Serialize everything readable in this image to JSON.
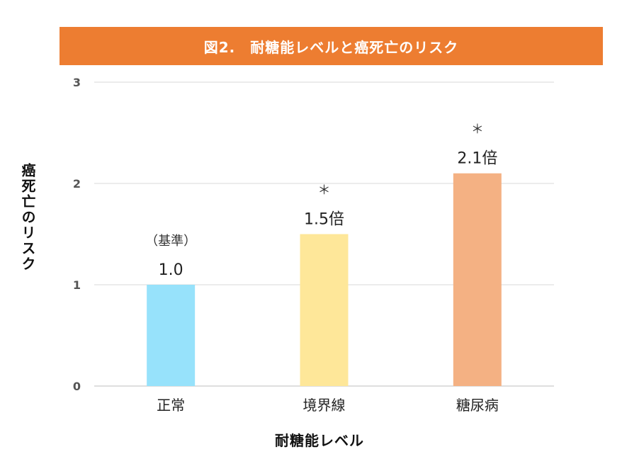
{
  "chart_data": {
    "type": "bar",
    "title": "図2.　耐糖能レベルと癌死亡のリスク",
    "xlabel": "耐糖能レベル",
    "ylabel": "癌死亡のリスク",
    "categories": [
      "正常",
      "境界線",
      "糖尿病"
    ],
    "values": [
      1.0,
      1.5,
      2.1
    ],
    "value_labels": [
      "1.0",
      "1.5倍",
      "2.1倍"
    ],
    "annotations": [
      "（基準）",
      "＊",
      "＊"
    ],
    "colors": [
      "#97E2FB",
      "#FEE799",
      "#F4B183"
    ],
    "yticks": [
      "0",
      "1",
      "2",
      "3"
    ],
    "ylim": [
      0,
      3
    ],
    "grid": true,
    "title_color": "#ED7D31"
  }
}
